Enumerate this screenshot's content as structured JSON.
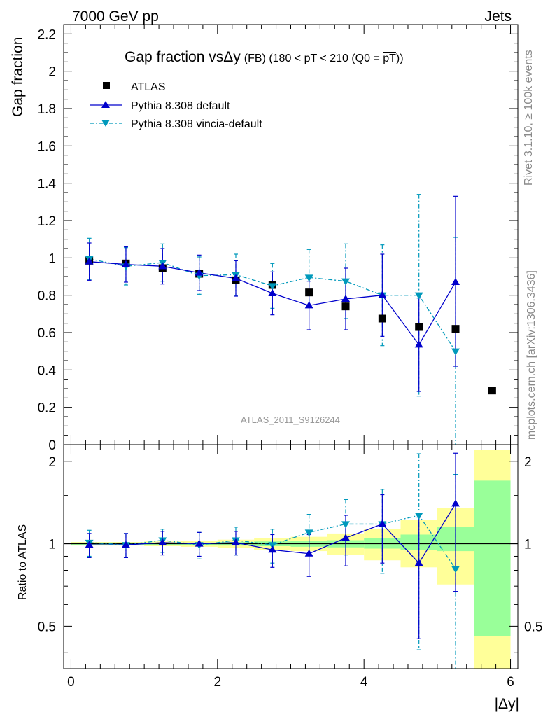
{
  "header": {
    "left_label": "7000 GeV pp",
    "right_label": "Jets"
  },
  "main_title": {
    "prefix": "Gap fraction vs",
    "delta_y": "Δy",
    "suffix_small": "(FB) (180 < pT < 210 (Q0 = ",
    "pt_overline": "pT",
    "close": "))"
  },
  "side_labels": {
    "rivet": "Rivet 3.1.10, ≥ 100k events",
    "mcplots": "mcplots.cern.ch [arXiv:1306.3436]"
  },
  "watermark": "ATLAS_2011_S9126244",
  "legend": {
    "atlas": "ATLAS",
    "default": "Pythia 8.308 default",
    "vincia": "Pythia 8.308 vincia-default"
  },
  "colors": {
    "atlas": "#000000",
    "default": "#0000cc",
    "vincia": "#0099bb",
    "band_inner": "#99ff99",
    "band_outer": "#ffff99",
    "watermark": "#999999"
  },
  "chart_data": [
    {
      "type": "scatter",
      "title": "Gap fraction vs Δy (FB) (180 < pT < 210 (Q0 = pT))",
      "xlabel": "|Δy|",
      "ylabel": "Gap fraction",
      "xlim": [
        -0.1,
        6.1
      ],
      "ylim": [
        0,
        2.25
      ],
      "yticks": [
        0,
        0.2,
        0.4,
        0.6,
        0.8,
        1,
        1.2,
        1.4,
        1.6,
        1.8,
        2,
        2.2
      ],
      "ytick_labels": [
        "0",
        "0.2",
        "0.4",
        "0.6",
        "0.8",
        "1",
        "1.2",
        "1.4",
        "1.6",
        "1.8",
        "2",
        "2.2"
      ],
      "series": [
        {
          "name": "ATLAS",
          "x": [
            0.25,
            0.75,
            1.25,
            1.75,
            2.25,
            2.75,
            3.25,
            3.75,
            4.25,
            4.75,
            5.25,
            5.75
          ],
          "values": [
            0.985,
            0.97,
            0.945,
            0.915,
            0.88,
            0.855,
            0.815,
            0.74,
            0.675,
            0.63,
            0.62,
            0.29
          ]
        },
        {
          "name": "Pythia 8.308 default",
          "x": [
            0.25,
            0.75,
            1.25,
            1.75,
            2.25,
            2.75,
            3.25,
            3.75,
            4.25,
            4.75,
            5.25
          ],
          "values": [
            0.98,
            0.965,
            0.955,
            0.92,
            0.89,
            0.81,
            0.745,
            0.78,
            0.8,
            0.535,
            0.87
          ],
          "err_up": [
            0.1,
            0.095,
            0.095,
            0.095,
            0.095,
            0.115,
            0.13,
            0.165,
            0.22,
            0.25,
            0.46
          ],
          "err_down": [
            0.1,
            0.095,
            0.095,
            0.095,
            0.095,
            0.115,
            0.13,
            0.165,
            0.22,
            0.25,
            0.45
          ]
        },
        {
          "name": "Pythia 8.308 vincia-default",
          "x": [
            0.25,
            0.75,
            1.25,
            1.75,
            2.25,
            2.75,
            3.25,
            3.75,
            4.25,
            4.75,
            5.25
          ],
          "values": [
            0.995,
            0.955,
            0.975,
            0.905,
            0.91,
            0.85,
            0.895,
            0.875,
            0.8,
            0.8,
            0.5
          ],
          "err_up": [
            0.11,
            0.1,
            0.1,
            0.1,
            0.11,
            0.12,
            0.15,
            0.2,
            0.27,
            0.54,
            0.61
          ],
          "err_down": [
            0.11,
            0.1,
            0.1,
            0.1,
            0.11,
            0.12,
            0.15,
            0.2,
            0.27,
            0.54,
            0.61
          ]
        }
      ]
    },
    {
      "type": "scatter",
      "title": "",
      "xlabel": "|Δy|",
      "ylabel": "Ratio to ATLAS",
      "xlim": [
        -0.1,
        6.1
      ],
      "ylim": [
        0.35,
        2.3
      ],
      "yticks": [
        0.5,
        1,
        2
      ],
      "ytick_labels": [
        "0.5",
        "1",
        "2"
      ],
      "xticks": [
        0,
        2,
        4,
        6
      ],
      "xtick_labels": [
        "0",
        "2",
        "4",
        "6"
      ],
      "bands": {
        "x_edges": [
          0,
          0.5,
          1,
          1.5,
          2,
          2.5,
          3,
          3.5,
          4,
          4.5,
          5,
          5.5,
          6
        ],
        "inner_low": [
          0.99,
          0.99,
          0.99,
          0.99,
          0.985,
          0.98,
          0.975,
          0.97,
          0.96,
          0.95,
          0.94,
          0.46
        ],
        "inner_high": [
          1.01,
          1.01,
          1.01,
          1.01,
          1.015,
          1.02,
          1.025,
          1.03,
          1.05,
          1.08,
          1.15,
          1.7
        ],
        "outer_low": [
          0.985,
          0.985,
          0.98,
          0.975,
          0.965,
          0.95,
          0.94,
          0.91,
          0.87,
          0.82,
          0.71,
          0.33
        ],
        "outer_high": [
          1.015,
          1.015,
          1.02,
          1.025,
          1.035,
          1.05,
          1.06,
          1.09,
          1.13,
          1.22,
          1.35,
          2.2
        ]
      },
      "series": [
        {
          "name": "Pythia 8.308 default / ATLAS",
          "x": [
            0.25,
            0.75,
            1.25,
            1.75,
            2.25,
            2.75,
            3.25,
            3.75,
            4.25,
            4.75,
            5.25
          ],
          "values": [
            0.99,
            0.99,
            1.01,
            1.0,
            1.01,
            0.95,
            0.92,
            1.05,
            1.18,
            0.85,
            1.4
          ],
          "err_up": [
            0.1,
            0.1,
            0.1,
            0.1,
            0.1,
            0.13,
            0.16,
            0.22,
            0.33,
            0.4,
            0.74
          ],
          "err_down": [
            0.1,
            0.1,
            0.1,
            0.1,
            0.1,
            0.13,
            0.16,
            0.22,
            0.33,
            0.4,
            0.73
          ]
        },
        {
          "name": "Pythia 8.308 vincia-default / ATLAS",
          "x": [
            0.25,
            0.75,
            1.25,
            1.75,
            2.25,
            2.75,
            3.25,
            3.75,
            4.25,
            4.75,
            5.25
          ],
          "values": [
            1.01,
            0.99,
            1.03,
            0.99,
            1.03,
            0.99,
            1.1,
            1.18,
            1.18,
            1.27,
            0.81
          ],
          "err_up": [
            0.11,
            0.1,
            0.1,
            0.11,
            0.12,
            0.14,
            0.18,
            0.27,
            0.4,
            0.86,
            0.98
          ],
          "err_down": [
            0.11,
            0.1,
            0.1,
            0.11,
            0.12,
            0.14,
            0.18,
            0.27,
            0.4,
            0.86,
            0.98
          ]
        }
      ],
      "reference_line": 1
    }
  ]
}
